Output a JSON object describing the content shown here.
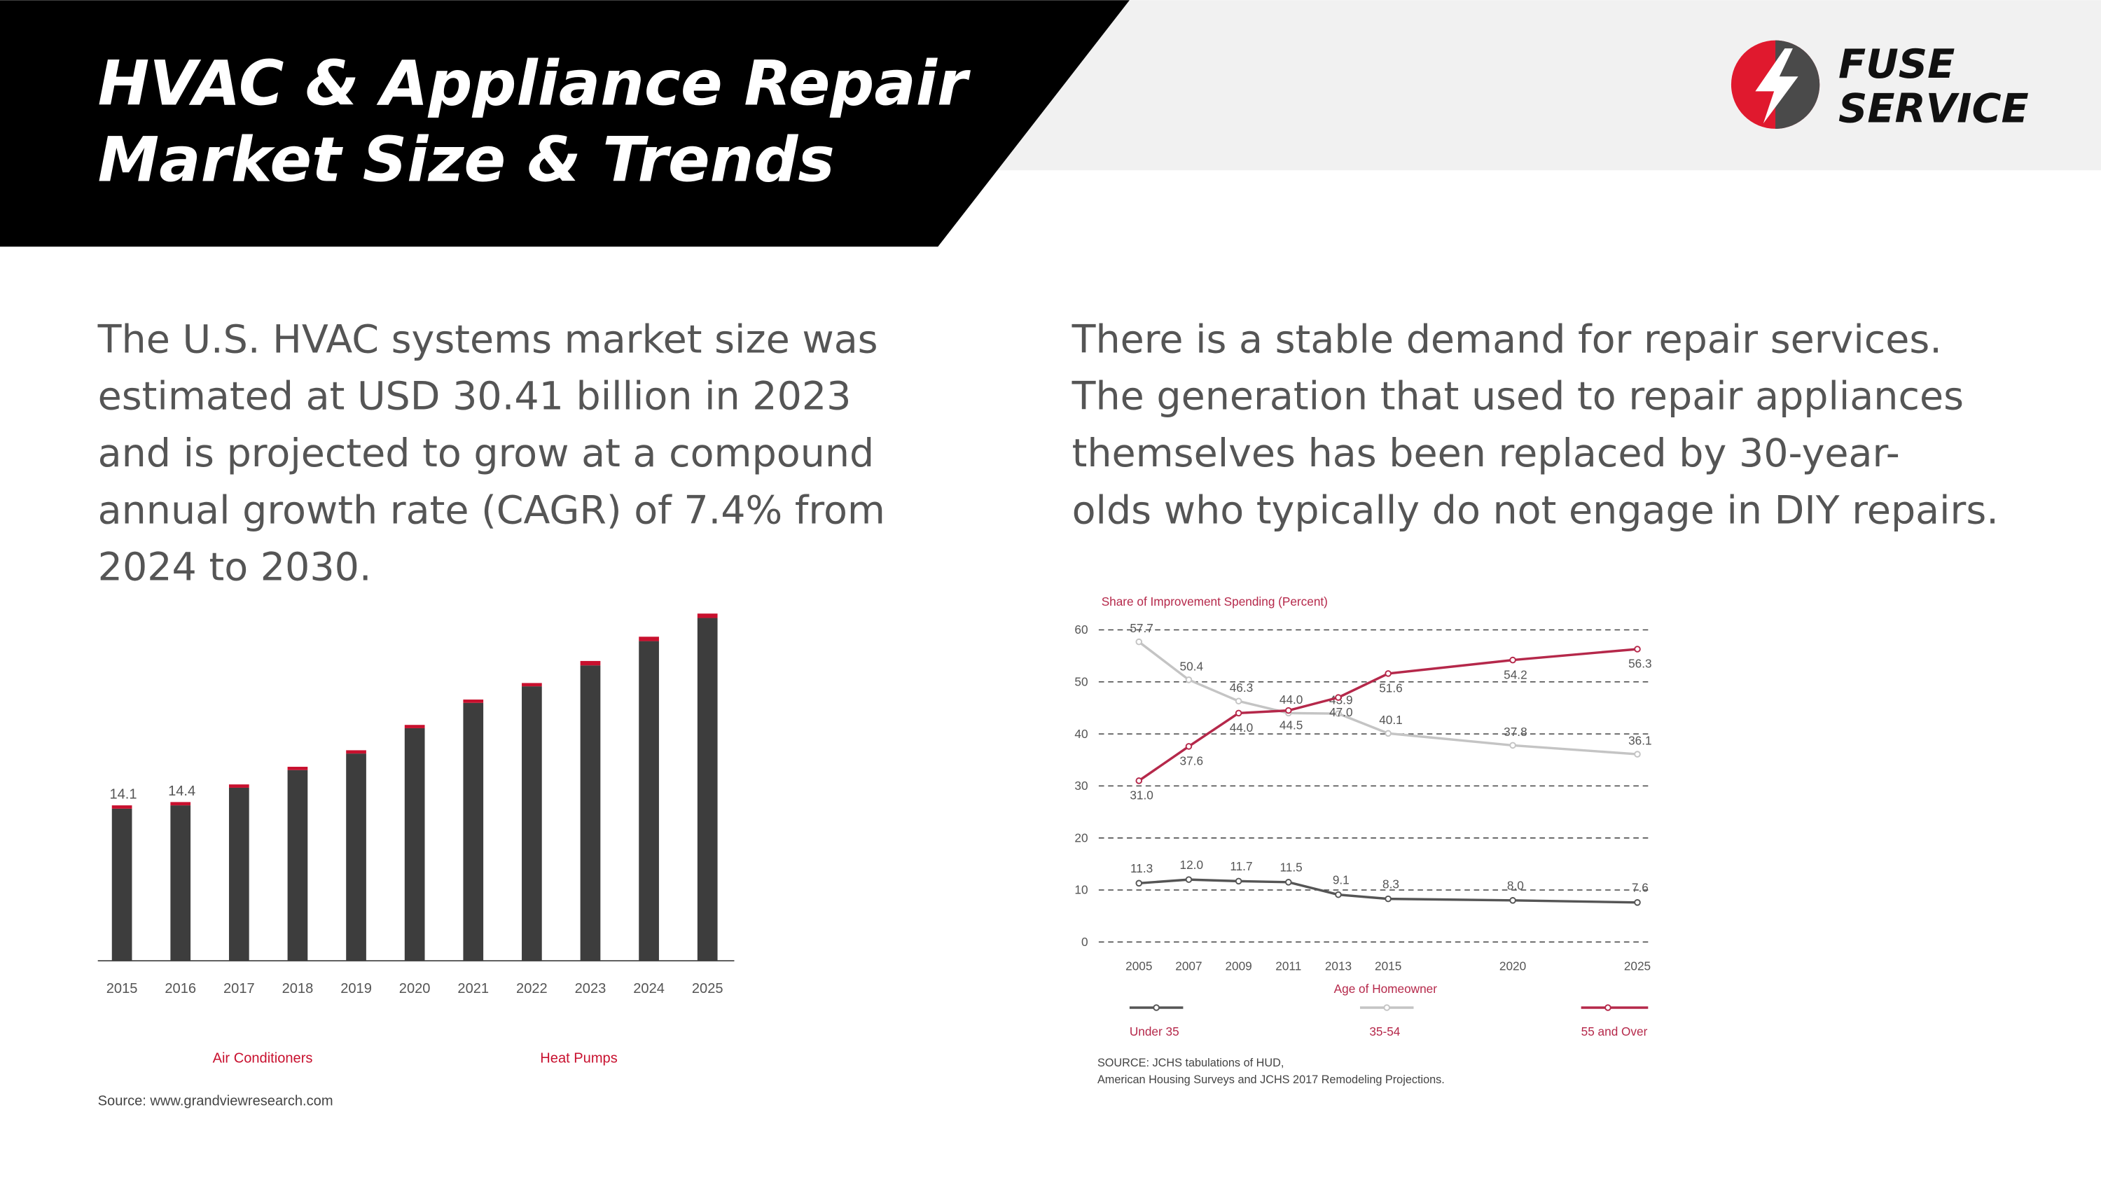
{
  "header": {
    "title_lines": [
      "HVAC & Appliance Repair",
      "Market Size & Trends"
    ]
  },
  "logo": {
    "lines": [
      "FUSE",
      "SERVICE"
    ]
  },
  "paragraphs": [
    {
      "lines": [
        "The U.S. HVAC systems market size was",
        "estimated at USD 30.41 billion in 2023",
        "and is projected to grow at a compound",
        "annual growth rate (CAGR) of 7.4% from",
        "2024 to 2030."
      ]
    },
    {
      "lines": [
        "There is a stable demand for repair services.",
        "The generation that used to repair appliances",
        "themselves has been replaced by 30-year-",
        "olds who typically do not engage in DIY repairs."
      ]
    }
  ],
  "chart_data": [
    {
      "type": "stacked-bar",
      "categories": [
        "2015",
        "2016",
        "2017",
        "2018",
        "2019",
        "2020",
        "2021",
        "2022",
        "2023",
        "2024",
        "2025"
      ],
      "series": [
        {
          "name": "Air Conditioners",
          "color": "#3d3d3d",
          "values": [
            13.8,
            14.1,
            15.7,
            17.3,
            18.8,
            21.1,
            23.4,
            24.9,
            26.8,
            29.0,
            31.1
          ]
        },
        {
          "name": "Heat Pumps",
          "color": "#c8102e",
          "values": [
            0.3,
            0.3,
            0.3,
            0.3,
            0.3,
            0.3,
            0.3,
            0.3,
            0.4,
            0.4,
            0.4
          ]
        }
      ],
      "total_labels": [
        14.1,
        14.4,
        null,
        null,
        null,
        null,
        null,
        null,
        null,
        null,
        null
      ],
      "source": "Source: www.grandviewresearch.com"
    },
    {
      "type": "line",
      "y_label": "Share of Improvement Spending (Percent)",
      "x_label": "Age of Homeowner",
      "x": [
        2005,
        2007,
        2009,
        2011,
        2013,
        2015,
        2020,
        2025
      ],
      "xticks": [
        2005,
        2007,
        2009,
        2011,
        2013,
        2015,
        2020,
        2025
      ],
      "ylim": [
        0,
        60
      ],
      "yticks": [
        0,
        10,
        20,
        30,
        40,
        50,
        60
      ],
      "grid": true,
      "series": [
        {
          "name": "Under 35",
          "color": "#555555",
          "values": [
            11.3,
            12.0,
            11.7,
            11.5,
            9.1,
            8.3,
            8.0,
            7.6
          ],
          "value_labels": [
            "11.3",
            "12.0",
            "11.7",
            "11.5",
            "9.1",
            "8.3",
            "8.0",
            "7.6"
          ]
        },
        {
          "name": "35-54",
          "color": "#c4c4c4",
          "values": [
            57.7,
            50.4,
            46.3,
            44.0,
            43.9,
            40.1,
            37.8,
            36.1
          ],
          "value_labels": [
            "57.7",
            "50.4",
            "46.3",
            "44.0",
            "43.9",
            "40.1",
            "37.8",
            "36.1"
          ]
        },
        {
          "name": "55 and Over",
          "color": "#b5284a",
          "values": [
            31.0,
            37.6,
            44.0,
            44.5,
            47.0,
            51.6,
            54.2,
            56.3
          ],
          "value_labels": [
            "31.0",
            "37.6",
            "44.0",
            "44.5",
            "47.0",
            "51.6",
            "54.2",
            "56.3"
          ]
        }
      ],
      "source_lines": [
        "SOURCE: JCHS tabulations of HUD,",
        "American Housing Surveys and JCHS 2017 Remodeling Projections."
      ]
    }
  ]
}
